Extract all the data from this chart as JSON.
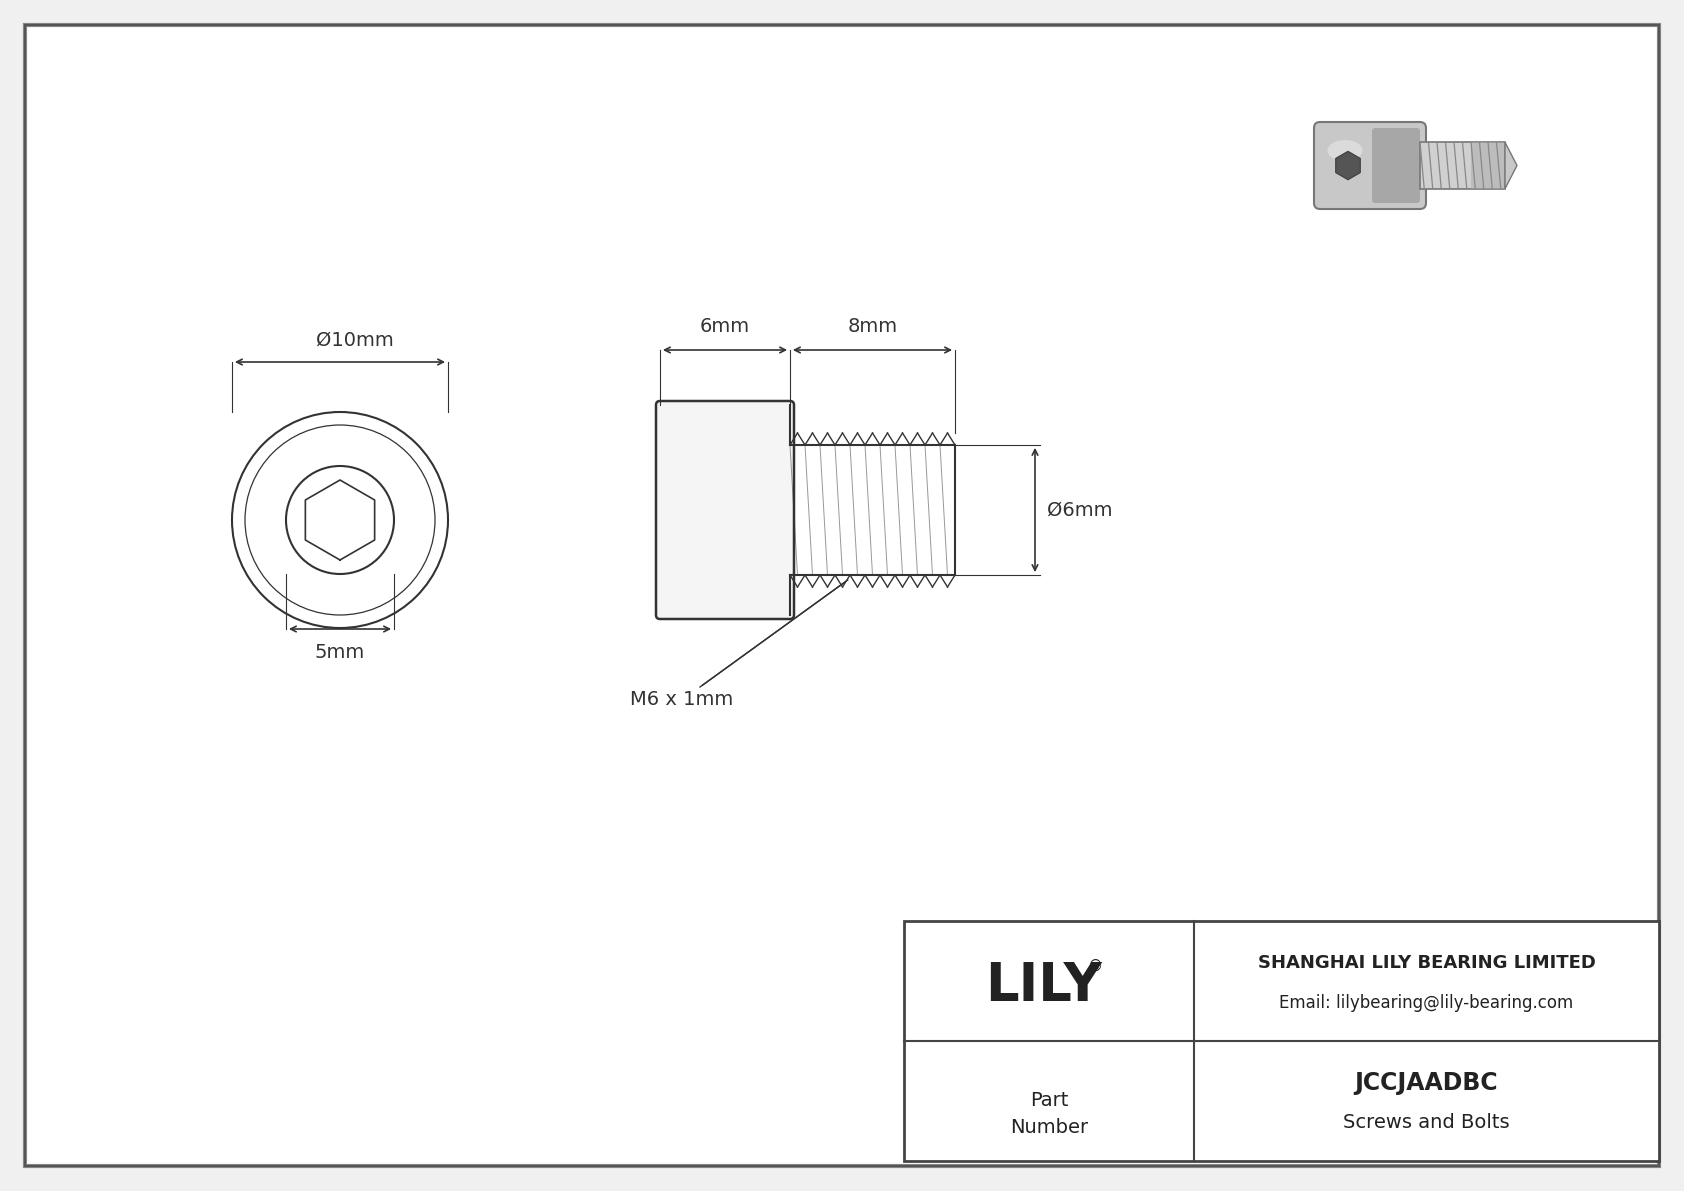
{
  "bg_color": "#f0f0f0",
  "inner_bg": "#ffffff",
  "line_color": "#333333",
  "border_color": "#555555",
  "dim_color": "#444444",
  "company_name": "SHANGHAI LILY BEARING LIMITED",
  "company_email": "Email: lilybearing@lily-bearing.com",
  "part_number": "JCCJAADBC",
  "part_category": "Screws and Bolts",
  "part_label_line1": "Part",
  "part_label_line2": "Number",
  "logo_text": "LILY",
  "logo_reg": "®",
  "dim_outer": "Ø10mm",
  "dim_inner": "5mm",
  "dim_head_length": "6mm",
  "dim_thread_length": "8mm",
  "dim_thread_dia": "Ø6mm",
  "dim_thread_label": "M6 x 1mm"
}
